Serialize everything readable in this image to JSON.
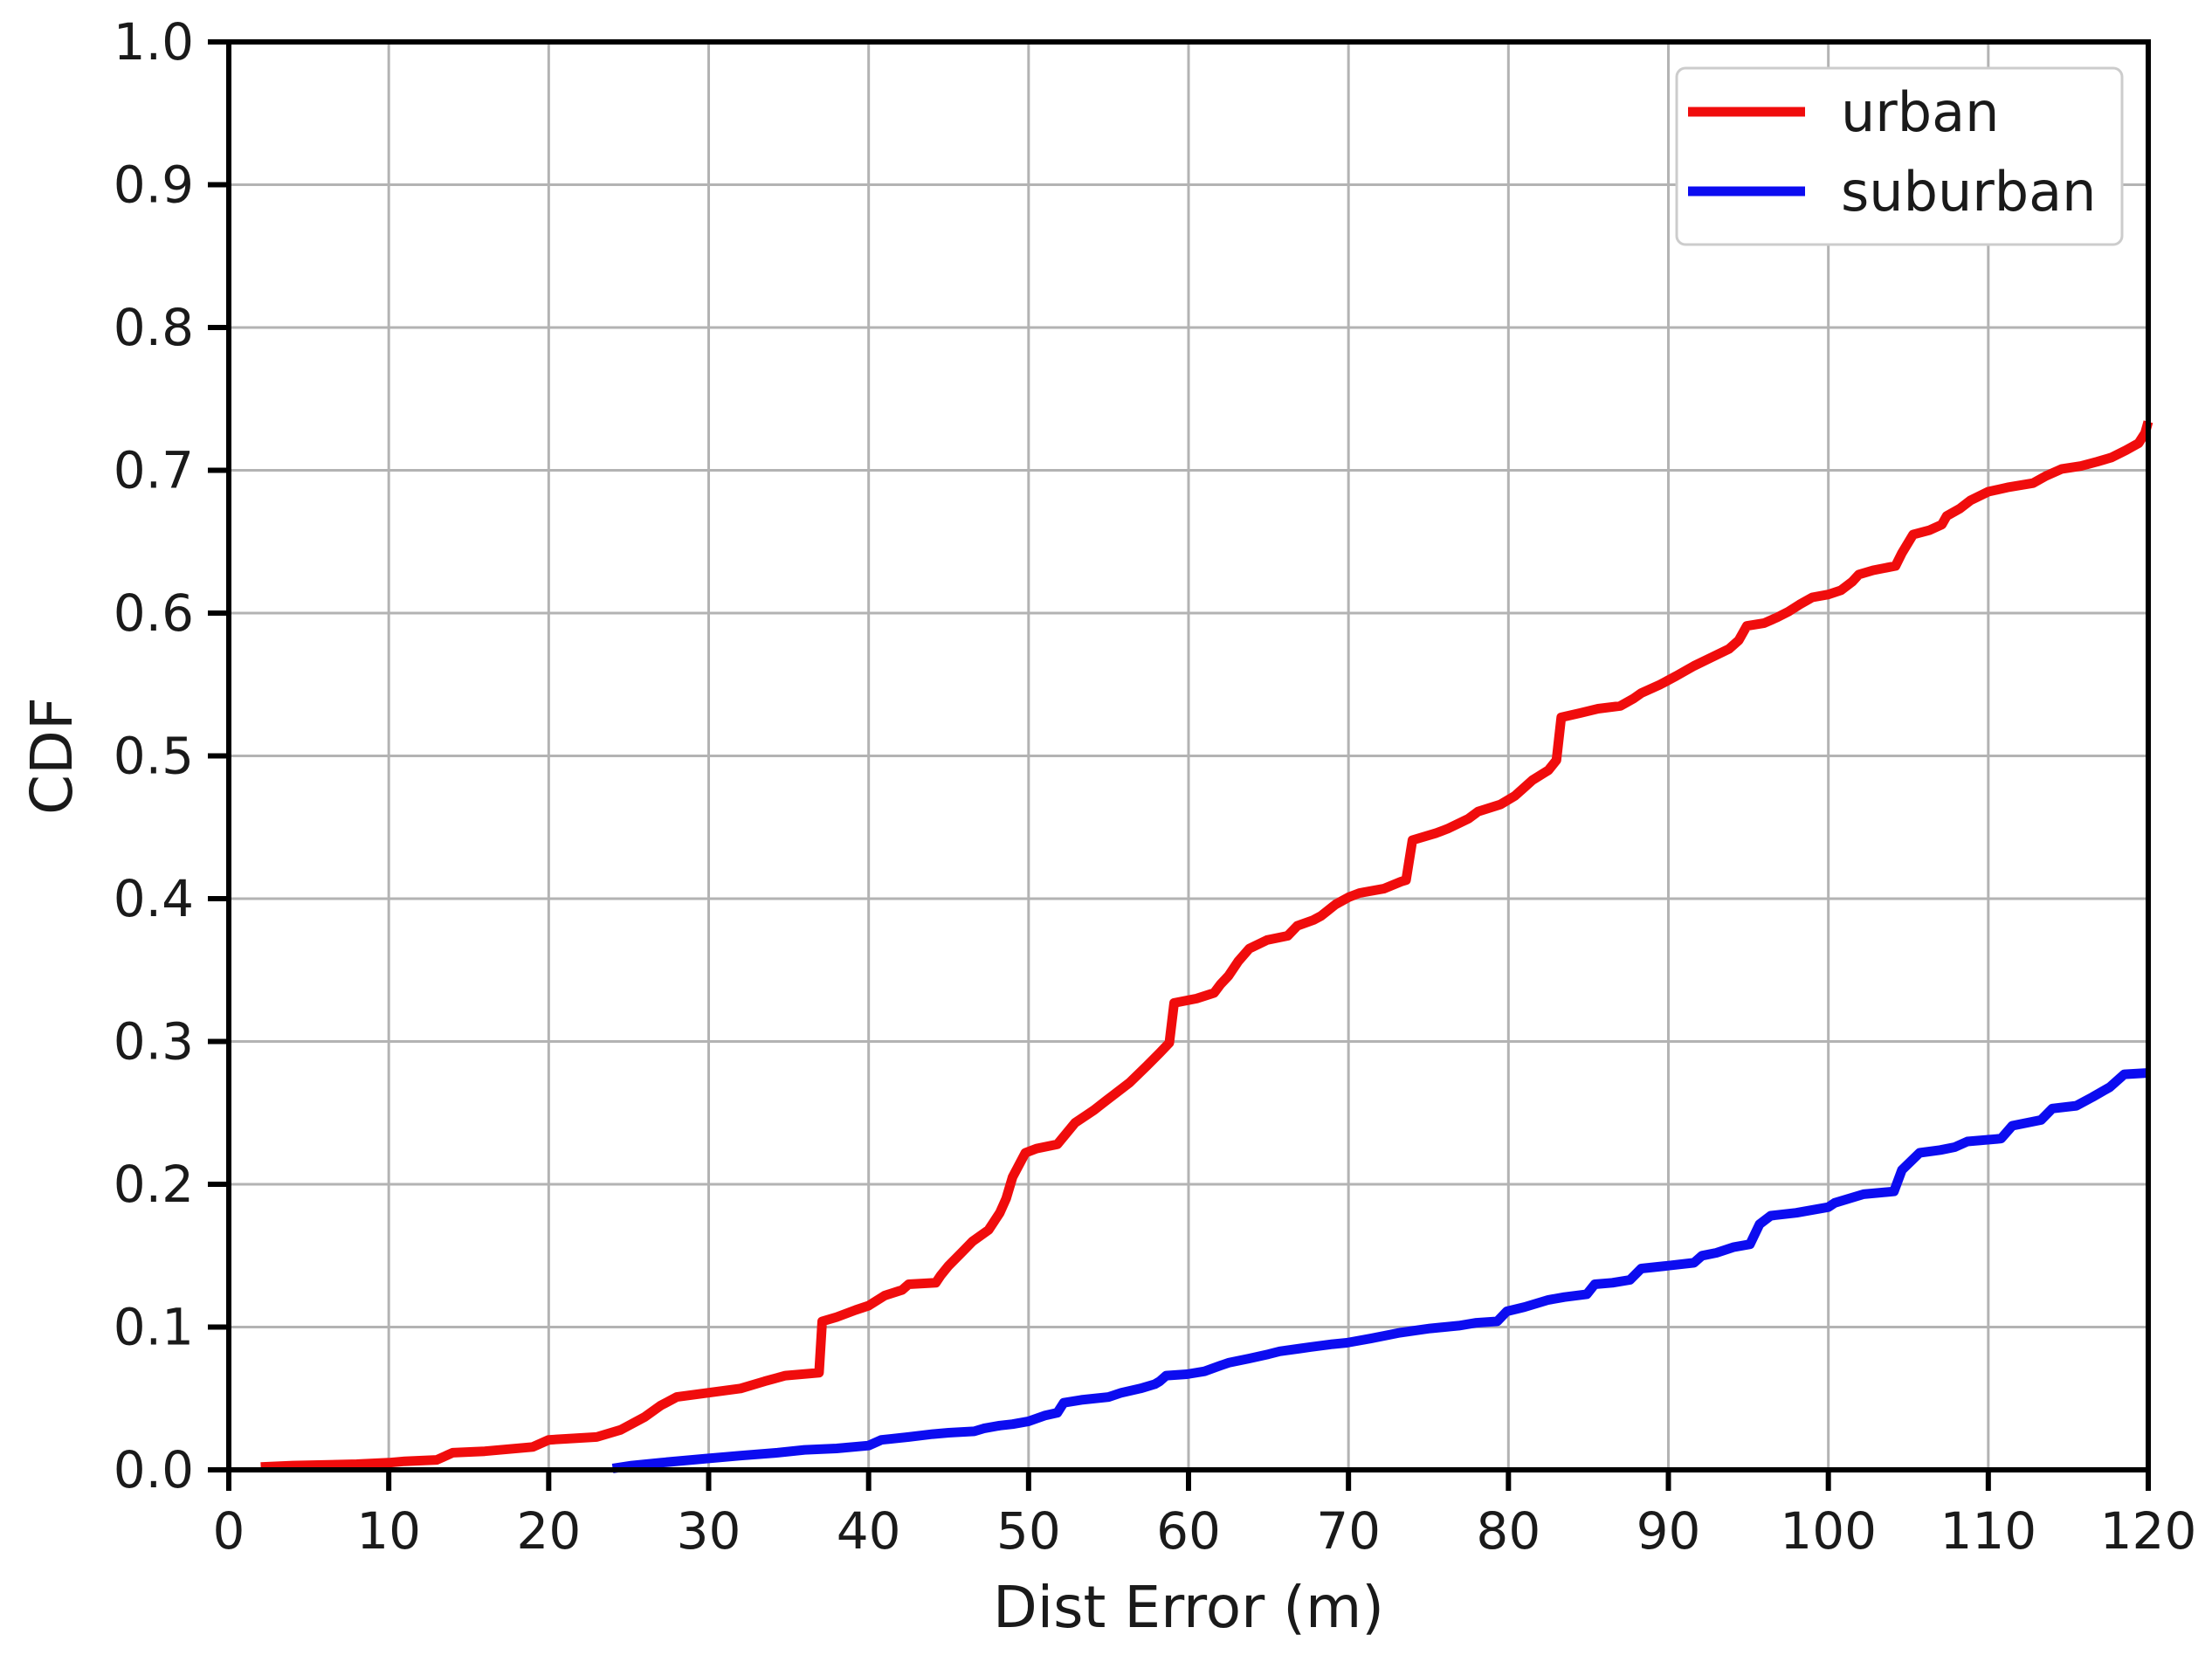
{
  "chart_data": {
    "type": "line",
    "subtype": "cdf",
    "title": "",
    "xlabel": "Dist Error (m)",
    "ylabel": "CDF",
    "xlim": [
      0,
      120
    ],
    "ylim": [
      0.0,
      1.0
    ],
    "xticks": [
      0,
      10,
      20,
      30,
      40,
      50,
      60,
      70,
      80,
      90,
      100,
      110,
      120
    ],
    "yticks": [
      "0.0",
      "0.1",
      "0.2",
      "0.3",
      "0.4",
      "0.5",
      "0.6",
      "0.7",
      "0.8",
      "0.9",
      "1.0"
    ],
    "grid": true,
    "grid_color": "#b3b3b3",
    "axis_color": "#000000",
    "legend": {
      "position": "upper right",
      "border_color": "#cccccc",
      "background": "#ffffff"
    },
    "series": [
      {
        "name": "urban",
        "color": "#f00c0c",
        "points": [
          [
            2,
            0.002
          ],
          [
            4,
            0.003
          ],
          [
            8,
            0.004
          ],
          [
            10,
            0.005
          ],
          [
            11,
            0.006
          ],
          [
            13,
            0.007
          ],
          [
            14,
            0.012
          ],
          [
            16,
            0.013
          ],
          [
            19,
            0.016
          ],
          [
            20,
            0.021
          ],
          [
            23,
            0.023
          ],
          [
            24.5,
            0.028
          ],
          [
            26,
            0.037
          ],
          [
            27,
            0.045
          ],
          [
            28,
            0.051
          ],
          [
            30,
            0.054
          ],
          [
            32,
            0.057
          ],
          [
            33.5,
            0.062
          ],
          [
            34.8,
            0.066
          ],
          [
            36.9,
            0.068
          ],
          [
            37.1,
            0.104
          ],
          [
            38,
            0.107
          ],
          [
            39.2,
            0.112
          ],
          [
            40,
            0.115
          ],
          [
            41,
            0.122
          ],
          [
            42.1,
            0.126
          ],
          [
            42.5,
            0.13
          ],
          [
            44.2,
            0.131
          ],
          [
            44.5,
            0.136
          ],
          [
            45,
            0.143
          ],
          [
            45.8,
            0.152
          ],
          [
            46.5,
            0.16
          ],
          [
            47.5,
            0.168
          ],
          [
            48.2,
            0.18
          ],
          [
            48.6,
            0.19
          ],
          [
            49,
            0.205
          ],
          [
            49.8,
            0.222
          ],
          [
            50.5,
            0.225
          ],
          [
            51.8,
            0.228
          ],
          [
            52.9,
            0.243
          ],
          [
            54.1,
            0.252
          ],
          [
            54.9,
            0.259
          ],
          [
            56.3,
            0.271
          ],
          [
            57.4,
            0.283
          ],
          [
            58.2,
            0.292
          ],
          [
            58.8,
            0.299
          ],
          [
            59.1,
            0.327
          ],
          [
            60.5,
            0.33
          ],
          [
            61.6,
            0.334
          ],
          [
            62.0,
            0.34
          ],
          [
            62.5,
            0.346
          ],
          [
            63.1,
            0.356
          ],
          [
            63.8,
            0.365
          ],
          [
            64.9,
            0.371
          ],
          [
            66.2,
            0.374
          ],
          [
            66.8,
            0.381
          ],
          [
            67.8,
            0.385
          ],
          [
            68.3,
            0.388
          ],
          [
            69.2,
            0.396
          ],
          [
            70.0,
            0.401
          ],
          [
            70.7,
            0.404
          ],
          [
            72.2,
            0.407
          ],
          [
            73.3,
            0.412
          ],
          [
            73.6,
            0.413
          ],
          [
            74.0,
            0.441
          ],
          [
            75.5,
            0.446
          ],
          [
            76.2,
            0.449
          ],
          [
            77.5,
            0.456
          ],
          [
            78.1,
            0.461
          ],
          [
            79.5,
            0.466
          ],
          [
            80.4,
            0.472
          ],
          [
            81.0,
            0.478
          ],
          [
            81.5,
            0.483
          ],
          [
            82.5,
            0.49
          ],
          [
            83.0,
            0.497
          ],
          [
            83.3,
            0.527
          ],
          [
            84.5,
            0.53
          ],
          [
            85.6,
            0.533
          ],
          [
            87.0,
            0.535
          ],
          [
            87.8,
            0.54
          ],
          [
            88.3,
            0.544
          ],
          [
            89.5,
            0.55
          ],
          [
            90.5,
            0.556
          ],
          [
            91.6,
            0.563
          ],
          [
            92.7,
            0.569
          ],
          [
            93.8,
            0.575
          ],
          [
            94.4,
            0.581
          ],
          [
            94.9,
            0.591
          ],
          [
            96.0,
            0.593
          ],
          [
            96.8,
            0.597
          ],
          [
            97.5,
            0.601
          ],
          [
            98.2,
            0.606
          ],
          [
            99.0,
            0.611
          ],
          [
            100.0,
            0.613
          ],
          [
            100.8,
            0.616
          ],
          [
            101.5,
            0.622
          ],
          [
            101.9,
            0.627
          ],
          [
            102.8,
            0.63
          ],
          [
            104.2,
            0.633
          ],
          [
            104.6,
            0.642
          ],
          [
            105.3,
            0.655
          ],
          [
            106.3,
            0.658
          ],
          [
            107.1,
            0.662
          ],
          [
            107.4,
            0.668
          ],
          [
            108.2,
            0.673
          ],
          [
            108.9,
            0.679
          ],
          [
            110.0,
            0.685
          ],
          [
            111.2,
            0.688
          ],
          [
            112.8,
            0.691
          ],
          [
            113.6,
            0.696
          ],
          [
            114.6,
            0.701
          ],
          [
            115.8,
            0.703
          ],
          [
            116.8,
            0.706
          ],
          [
            117.7,
            0.709
          ],
          [
            118.6,
            0.714
          ],
          [
            119.4,
            0.719
          ],
          [
            119.8,
            0.726
          ],
          [
            120,
            0.734
          ]
        ]
      },
      {
        "name": "suburban",
        "color": "#0c0cf0",
        "points": [
          [
            24,
            0.001
          ],
          [
            25.2,
            0.003
          ],
          [
            27,
            0.005
          ],
          [
            30,
            0.008
          ],
          [
            32,
            0.01
          ],
          [
            34.3,
            0.012
          ],
          [
            36,
            0.014
          ],
          [
            38,
            0.015
          ],
          [
            40,
            0.017
          ],
          [
            40.8,
            0.021
          ],
          [
            42.5,
            0.023
          ],
          [
            44,
            0.025
          ],
          [
            45,
            0.026
          ],
          [
            46.6,
            0.027
          ],
          [
            47.2,
            0.029
          ],
          [
            48.2,
            0.031
          ],
          [
            49,
            0.032
          ],
          [
            50,
            0.034
          ],
          [
            51,
            0.038
          ],
          [
            51.8,
            0.04
          ],
          [
            52.2,
            0.047
          ],
          [
            53.3,
            0.049
          ],
          [
            55,
            0.051
          ],
          [
            55.8,
            0.054
          ],
          [
            57,
            0.057
          ],
          [
            57.9,
            0.06
          ],
          [
            58.2,
            0.062
          ],
          [
            58.6,
            0.066
          ],
          [
            59.9,
            0.067
          ],
          [
            61,
            0.069
          ],
          [
            62,
            0.073
          ],
          [
            62.5,
            0.075
          ],
          [
            63.8,
            0.078
          ],
          [
            65,
            0.081
          ],
          [
            65.7,
            0.083
          ],
          [
            67,
            0.085
          ],
          [
            67.6,
            0.086
          ],
          [
            69,
            0.088
          ],
          [
            69.9,
            0.089
          ],
          [
            71.4,
            0.092
          ],
          [
            73.2,
            0.096
          ],
          [
            75.1,
            0.099
          ],
          [
            76.9,
            0.101
          ],
          [
            78,
            0.103
          ],
          [
            79.3,
            0.104
          ],
          [
            79.9,
            0.111
          ],
          [
            81,
            0.114
          ],
          [
            82.5,
            0.119
          ],
          [
            83.5,
            0.121
          ],
          [
            84.9,
            0.123
          ],
          [
            85.4,
            0.13
          ],
          [
            86.5,
            0.131
          ],
          [
            87.6,
            0.133
          ],
          [
            88.3,
            0.141
          ],
          [
            90,
            0.143
          ],
          [
            91.6,
            0.145
          ],
          [
            92.1,
            0.15
          ],
          [
            93,
            0.152
          ],
          [
            94.1,
            0.156
          ],
          [
            95.1,
            0.158
          ],
          [
            95.7,
            0.172
          ],
          [
            96.4,
            0.178
          ],
          [
            98,
            0.18
          ],
          [
            99,
            0.182
          ],
          [
            100,
            0.184
          ],
          [
            100.4,
            0.187
          ],
          [
            102.2,
            0.193
          ],
          [
            104.1,
            0.195
          ],
          [
            104.6,
            0.21
          ],
          [
            105.7,
            0.222
          ],
          [
            107,
            0.224
          ],
          [
            107.9,
            0.226
          ],
          [
            108.7,
            0.23
          ],
          [
            110.8,
            0.232
          ],
          [
            111.5,
            0.241
          ],
          [
            113.3,
            0.245
          ],
          [
            114.0,
            0.253
          ],
          [
            115.5,
            0.255
          ],
          [
            116.5,
            0.261
          ],
          [
            117.6,
            0.268
          ],
          [
            118.5,
            0.277
          ],
          [
            120,
            0.278
          ]
        ]
      }
    ]
  }
}
